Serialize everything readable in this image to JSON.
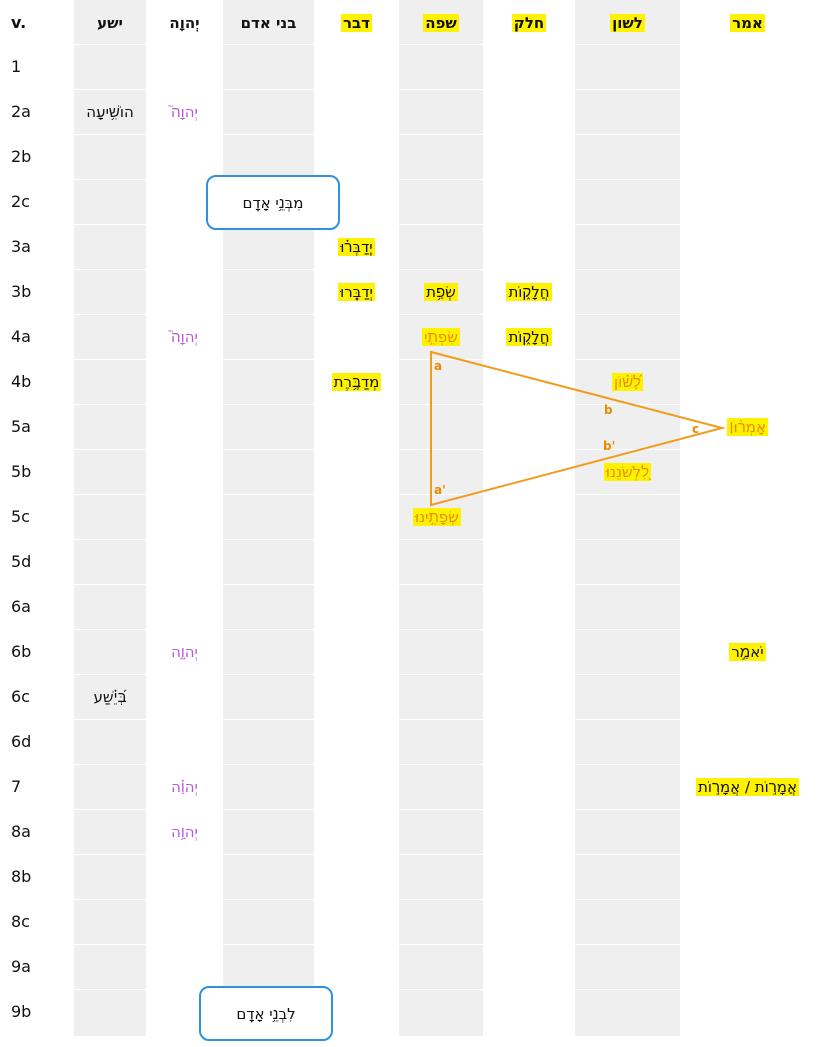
{
  "headers": {
    "v": "v.",
    "yasha": "ישע",
    "yhwh": "יְהוָה",
    "bnei_adam": "בני אדם",
    "davar": "דבר",
    "safa": "שפה",
    "chalak": "חלק",
    "lashon": "לשון",
    "amar": "אמר"
  },
  "rows": [
    "1",
    "2a",
    "2b",
    "2c",
    "3a",
    "3b",
    "4a",
    "4b",
    "5a",
    "5b",
    "5c",
    "5d",
    "6a",
    "6b",
    "6c",
    "6d",
    "7",
    "8a",
    "8b",
    "8c",
    "9a",
    "9b"
  ],
  "cells": {
    "r2a_yasha": "הוֹשִׁ֥יעָה",
    "r2a_yhwh": "יְהוָה֮",
    "r2c_bnei": "מִבְּנֵ֥י אָדָֽם",
    "r3a_davar": "יְֽדַבְּר֗וּ",
    "r3b_davar": "יְדַבֵּֽרוּ",
    "r3b_safa": "שְׂפַ֥ת",
    "r3b_chalak": "חֲלָק֑וֹת",
    "r4a_yhwh": "יְהוָה֮",
    "r4a_safa": "שִׂפְתֵ֣י",
    "r4a_chalak": "חֲלָק֑וֹת",
    "r4b_davar": "מְדַבֶּ֥רֶת",
    "r4b_lashon": "לָ֝שׁ֗וֹן",
    "r5a_amar": "אָמְר֨וּ׀",
    "r5b_lashon": "לִ֭לְשֹׁנֵנוּ",
    "r5c_safa": "שְׂפָתֵ֣ינוּ",
    "r6b_yhwh": "יְהוָ֑ה",
    "r6b_amar": "יֹאמַ֣ר",
    "r6c_yasha": "בְּ֝יֵ֗שַׁע",
    "r7_yhwh": "יְהוָ֗ה",
    "r7_amar": "אֲמָר֣וֹת / אֲמָר֣וֹת",
    "r8a_yhwh": "יְהוָ֥ה",
    "r9b_bnei": "לִבְנֵ֥י אָדָֽם"
  },
  "triangle": {
    "label_a": "a",
    "label_a2": "a'",
    "label_b": "b",
    "label_b2": "b'",
    "label_c": "c"
  },
  "colors": {
    "highlight": "#fff200",
    "triangle": "#f29a1a",
    "divine_name": "#b55ad6",
    "box_border": "#2e92dd",
    "column_bg": "#efefef"
  }
}
